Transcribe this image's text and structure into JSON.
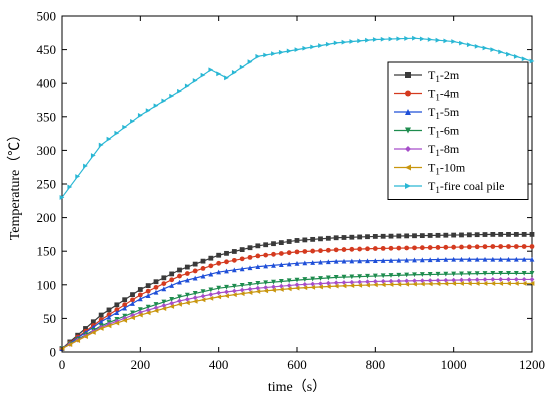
{
  "chart_data": {
    "type": "line",
    "xlabel": "time（s）",
    "ylabel": "Temperature（℃）",
    "xlim": [
      0,
      1200
    ],
    "ylim": [
      0,
      500
    ],
    "xticks": [
      0,
      200,
      400,
      600,
      800,
      1000,
      1200
    ],
    "yticks": [
      0,
      50,
      100,
      150,
      200,
      250,
      300,
      350,
      400,
      450,
      500
    ],
    "grid": false,
    "legend_position": "right",
    "x": [
      0,
      100,
      200,
      300,
      400,
      500,
      600,
      700,
      800,
      900,
      1000,
      1100,
      1200
    ],
    "series": [
      {
        "name": "T1-2m",
        "prefix": "T",
        "sub": "1",
        "suffix": "-2m",
        "color": "#3a3a3a",
        "marker": "square",
        "values": [
          5,
          55,
          93,
          122,
          144,
          158,
          166,
          170,
          172,
          173,
          174,
          175,
          175
        ]
      },
      {
        "name": "T1-4m",
        "prefix": "T",
        "sub": "1",
        "suffix": "-4m",
        "color": "#d43a1f",
        "marker": "circle",
        "values": [
          5,
          48,
          85,
          113,
          132,
          143,
          149,
          152,
          154,
          155,
          156,
          157,
          157
        ]
      },
      {
        "name": "T1-5m",
        "prefix": "T",
        "sub": "1",
        "suffix": "-5m",
        "color": "#1f4fd8",
        "marker": "triangle-up",
        "values": [
          5,
          45,
          79,
          104,
          119,
          127,
          132,
          135,
          136,
          137,
          138,
          138,
          138
        ]
      },
      {
        "name": "T1-6m",
        "prefix": "T",
        "sub": "1",
        "suffix": "-6m",
        "color": "#1e8c4e",
        "marker": "triangle-down",
        "values": [
          5,
          39,
          63,
          82,
          95,
          102,
          107,
          111,
          113,
          115,
          116,
          117,
          117
        ]
      },
      {
        "name": "T1-8m",
        "prefix": "T",
        "sub": "1",
        "suffix": "-8m",
        "color": "#a64ec9",
        "marker": "diamond",
        "values": [
          5,
          37,
          59,
          76,
          88,
          95,
          100,
          103,
          105,
          106,
          107,
          108,
          108
        ]
      },
      {
        "name": "T1-10m",
        "prefix": "T",
        "sub": "1",
        "suffix": "-10m",
        "color": "#c9960e",
        "marker": "triangle-left",
        "values": [
          5,
          35,
          55,
          71,
          82,
          90,
          95,
          98,
          100,
          101,
          102,
          102,
          102
        ]
      },
      {
        "name": "T1-fire coal pile",
        "prefix": "T",
        "sub": "1",
        "suffix": "-fire coal pile",
        "color": "#2ab7d4",
        "marker": "triangle-right",
        "x": [
          0,
          100,
          200,
          300,
          380,
          420,
          500,
          600,
          700,
          800,
          900,
          1000,
          1100,
          1200
        ],
        "values": [
          230,
          308,
          352,
          388,
          420,
          408,
          440,
          450,
          460,
          465,
          467,
          462,
          450,
          433
        ]
      }
    ]
  }
}
